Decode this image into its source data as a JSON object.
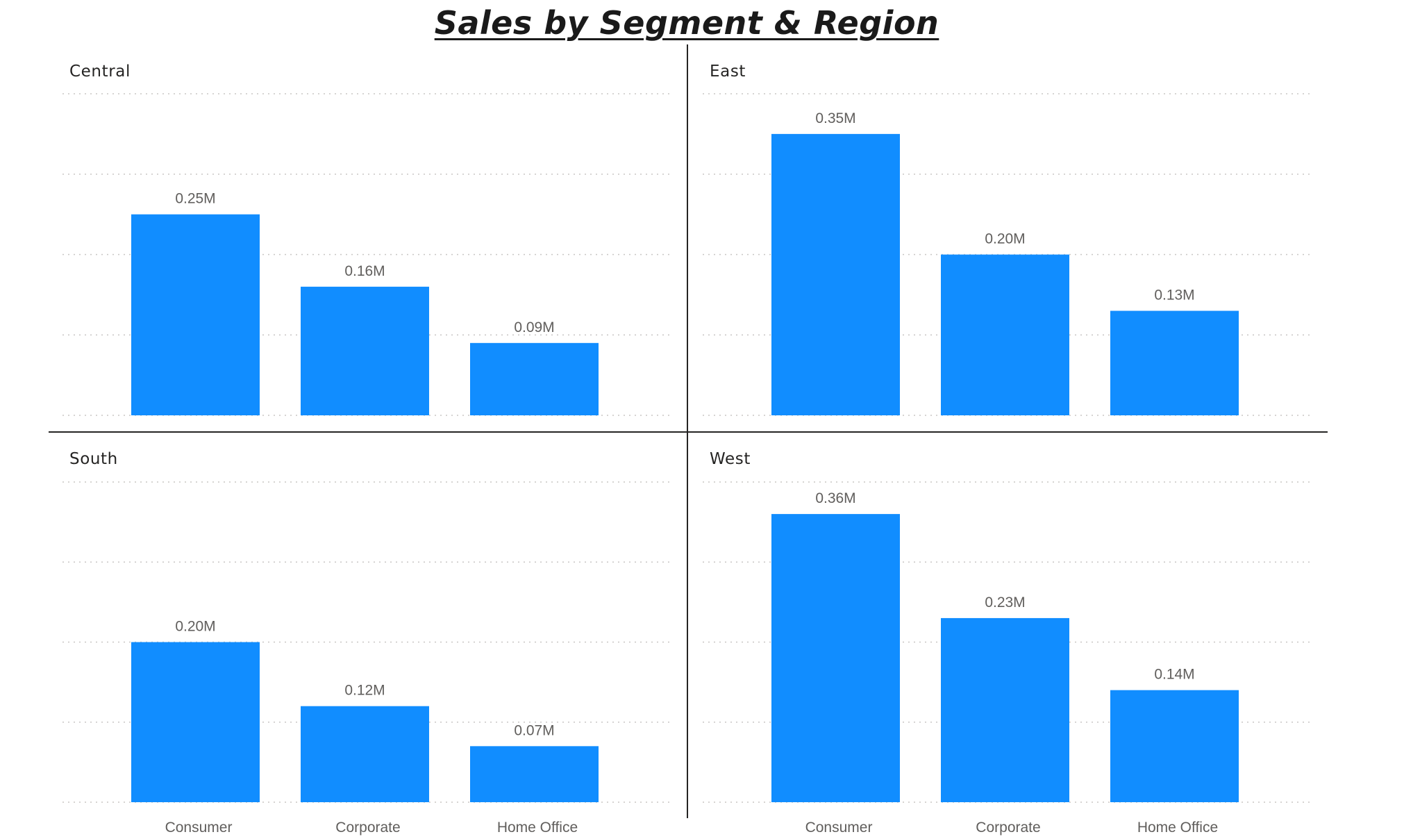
{
  "title": "Sales by Segment & Region",
  "colors": {
    "bar": "#118DFF",
    "gridline": "#c8c6c4",
    "divider": "#252423"
  },
  "chart_data": [
    {
      "type": "bar",
      "title": "Central",
      "categories": [
        "Consumer",
        "Corporate",
        "Home Office"
      ],
      "values": [
        0.25,
        0.16,
        0.09
      ],
      "labels": [
        "0.25M",
        "0.16M",
        "0.09M"
      ],
      "ylim": [
        0,
        0.4
      ],
      "grid": true,
      "xlabel": "",
      "ylabel": ""
    },
    {
      "type": "bar",
      "title": "East",
      "categories": [
        "Consumer",
        "Corporate",
        "Home Office"
      ],
      "values": [
        0.35,
        0.2,
        0.13
      ],
      "labels": [
        "0.35M",
        "0.20M",
        "0.13M"
      ],
      "ylim": [
        0,
        0.4
      ],
      "grid": true,
      "xlabel": "",
      "ylabel": ""
    },
    {
      "type": "bar",
      "title": "South",
      "categories": [
        "Consumer",
        "Corporate",
        "Home Office"
      ],
      "values": [
        0.2,
        0.12,
        0.07
      ],
      "labels": [
        "0.20M",
        "0.12M",
        "0.07M"
      ],
      "ylim": [
        0,
        0.4
      ],
      "grid": true,
      "xlabel": "",
      "ylabel": ""
    },
    {
      "type": "bar",
      "title": "West",
      "categories": [
        "Consumer",
        "Corporate",
        "Home Office"
      ],
      "values": [
        0.36,
        0.23,
        0.14
      ],
      "labels": [
        "0.36M",
        "0.23M",
        "0.14M"
      ],
      "ylim": [
        0,
        0.4
      ],
      "grid": true,
      "xlabel": "",
      "ylabel": ""
    }
  ]
}
